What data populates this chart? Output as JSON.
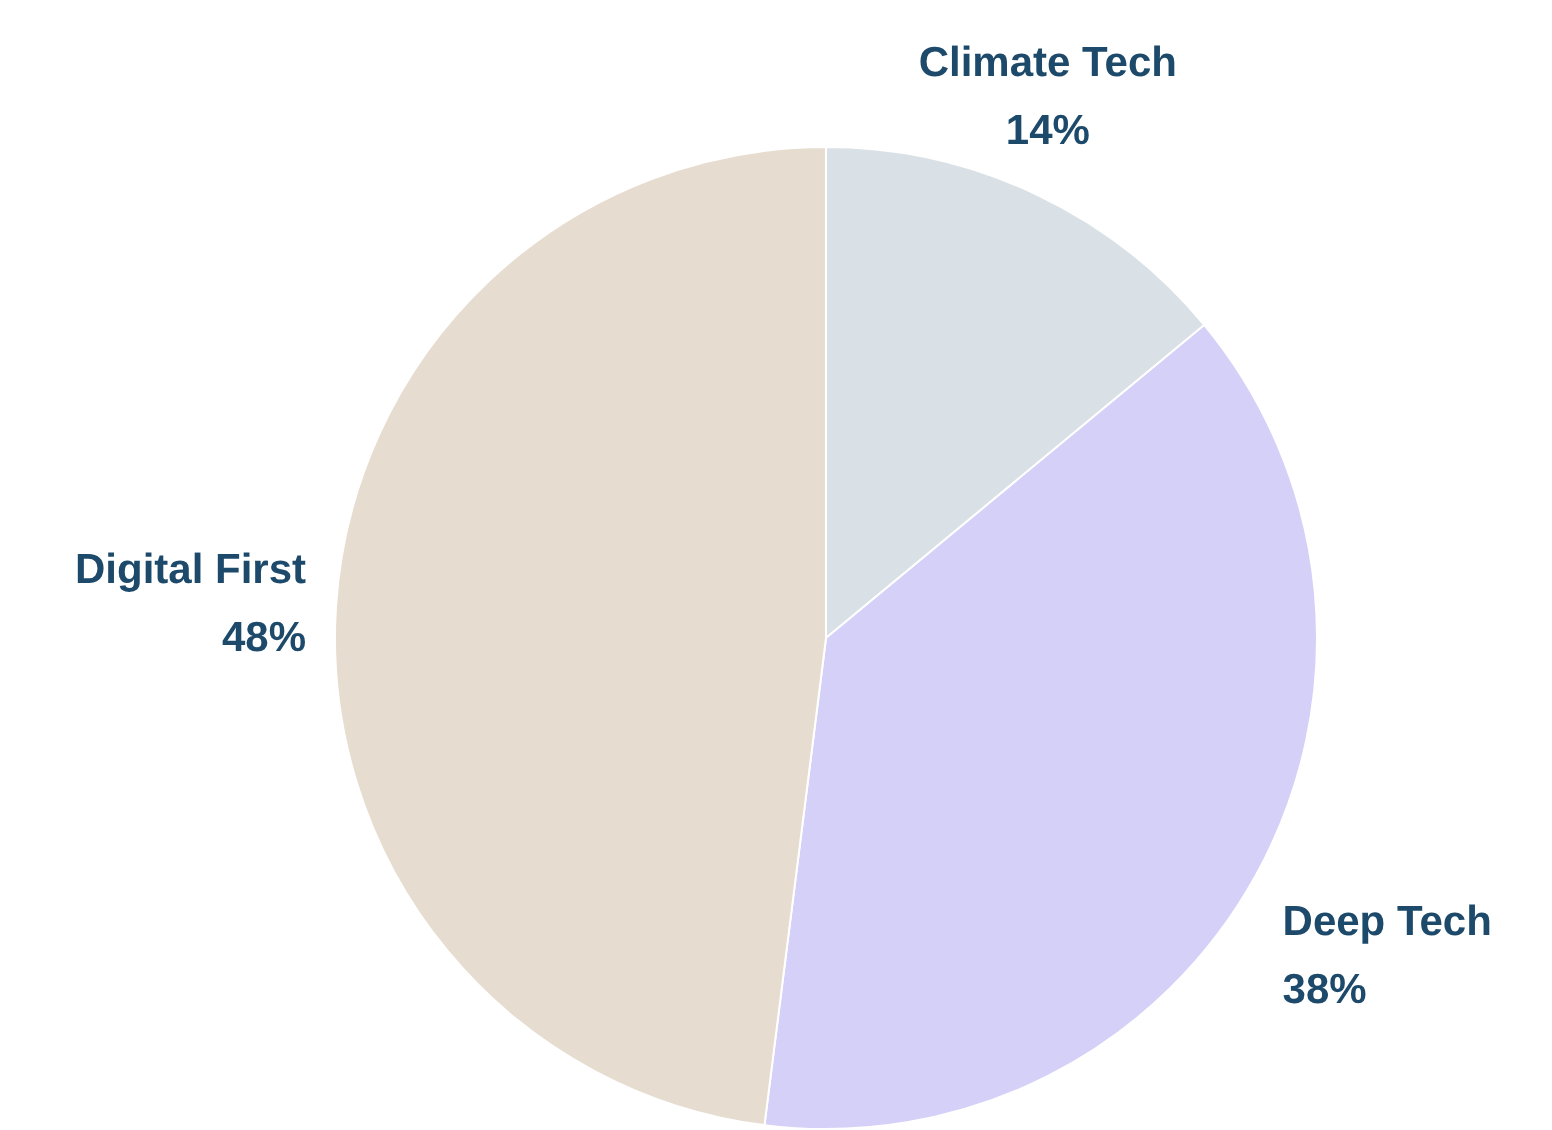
{
  "chart_data": {
    "type": "pie",
    "categories": [
      "Climate Tech",
      "Deep Tech",
      "Digital First"
    ],
    "values": [
      14,
      38,
      48
    ],
    "value_labels": [
      "14%",
      "38%",
      "48%"
    ],
    "colors": [
      "#d9e1e6",
      "#d4d0f7",
      "#e6dccf"
    ],
    "legend": false
  }
}
